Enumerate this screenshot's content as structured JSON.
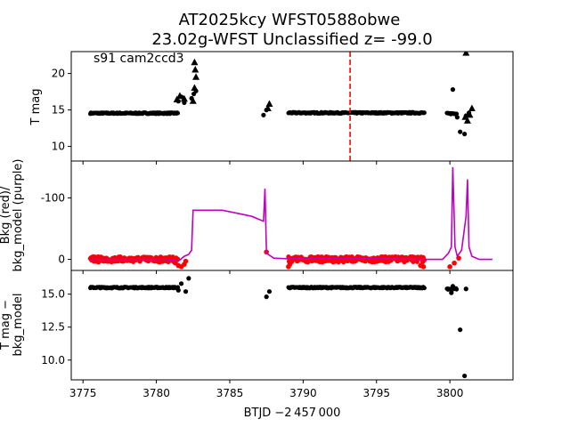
{
  "title_line1": "AT2025kcy  WFST0588obwe",
  "title_line2": "23.02g-WFST Unclassified z= -99.0",
  "annotation": "s91 cam2ccd3",
  "xlabel": "BTJD −2 457 000",
  "colors": {
    "data": "#000000",
    "bkg": "#ff0000",
    "model": "#c000c0",
    "marker": "#ff0000"
  },
  "chart_data": [
    {
      "type": "scatter",
      "panel": "top",
      "ylabel": "T mag",
      "ylim": [
        23.0,
        8.0
      ],
      "yticks": [
        10,
        15,
        20
      ],
      "xlim": [
        3774.2,
        3804.3
      ],
      "marker_x": 3793.2,
      "series": [
        {
          "kind": "band",
          "segments": [
            [
              3775.5,
              3781.5,
              14.55
            ],
            [
              3789.0,
              3798.3,
              14.6
            ],
            [
              3799.8,
              3800.5,
              14.5
            ]
          ]
        },
        {
          "kind": "points",
          "x": [
            3781.5,
            3781.7,
            3781.9,
            3782.4,
            3782.55,
            3782.7,
            3787.3,
            3787.5,
            3800.5,
            3800.7,
            3801.1,
            3801.3
          ],
          "y": [
            16.2,
            16.8,
            16.0,
            16.6,
            17.2,
            17.6,
            14.3,
            15.0,
            14.0,
            12.0,
            14.2,
            14.6
          ]
        },
        {
          "kind": "triangles",
          "x": [
            3781.4,
            3781.6,
            3781.9,
            3782.5,
            3782.6,
            3782.7,
            3782.65,
            3782.6,
            3787.6,
            3787.7,
            3801.05,
            3801.2,
            3801.35,
            3801.5,
            3801.1
          ],
          "y": [
            16.4,
            16.9,
            16.5,
            16.2,
            18.0,
            19.5,
            20.5,
            21.5,
            15.2,
            15.8,
            14.0,
            13.5,
            14.3,
            15.2,
            22.8
          ]
        },
        {
          "kind": "outliers",
          "x": [
            3801.0,
            3800.2
          ],
          "y": [
            11.7,
            17.8
          ]
        }
      ]
    },
    {
      "type": "line",
      "panel": "middle",
      "ylabel_line1": "Bkg (red)/",
      "ylabel_line2": "bkg_model (purple)",
      "ylim": [
        -160,
        18
      ],
      "yticks": [
        0,
        -100
      ],
      "bkg_segments": [
        [
          3775.5,
          3781.5,
          0
        ],
        [
          3789.0,
          3798.3,
          0
        ]
      ],
      "bkg_points": {
        "x": [
          3781.3,
          3781.5,
          3781.7,
          3781.9,
          3782.0,
          3787.5,
          3789.0,
          3789.1,
          3798.0,
          3798.2,
          3800.0,
          3800.3,
          3800.6
        ],
        "y": [
          6,
          10,
          12,
          8,
          3,
          -12,
          12,
          8,
          10,
          12,
          12,
          6,
          -2
        ]
      },
      "model": {
        "x": [
          3775.5,
          3780.5,
          3781.5,
          3781.9,
          3782.2,
          3782.4,
          3782.5,
          3783.5,
          3784.5,
          3785.5,
          3786.5,
          3787.3,
          3787.4,
          3787.5,
          3788.0,
          3789.0,
          3795.0,
          3798.0,
          3799.5,
          3799.9,
          3800.1,
          3800.2,
          3800.35,
          3800.5,
          3800.8,
          3801.1,
          3801.2,
          3801.3,
          3801.5,
          3802.0,
          3802.9
        ],
        "y": [
          0,
          0,
          3,
          -5,
          -8,
          -15,
          -80,
          -80,
          -80,
          -75,
          -70,
          -62,
          -115,
          -10,
          -2,
          -1,
          -1,
          0,
          0,
          -10,
          -20,
          -150,
          -20,
          -5,
          -15,
          -70,
          -130,
          -20,
          -5,
          0,
          0
        ]
      }
    },
    {
      "type": "scatter",
      "panel": "bottom",
      "ylabel_line1": "T mag −",
      "ylabel_line2": "bkg_model",
      "ylim": [
        16.8,
        8.5
      ],
      "yticks": [
        10.0,
        12.5,
        15.0
      ],
      "series": [
        {
          "kind": "band",
          "segments": [
            [
              3775.5,
              3781.5,
              15.5
            ],
            [
              3789.0,
              3798.3,
              15.5
            ],
            [
              3799.8,
              3800.5,
              15.4
            ]
          ]
        },
        {
          "kind": "points",
          "x": [
            3781.5,
            3781.7,
            3782.0,
            3782.2,
            3787.5,
            3787.7,
            3800.7,
            3801.0,
            3801.1,
            3800.1,
            3800.2
          ],
          "y": [
            15.3,
            15.8,
            15.2,
            16.2,
            14.8,
            15.2,
            12.3,
            8.8,
            15.4,
            15.1,
            15.6
          ]
        }
      ]
    }
  ],
  "xticks": [
    3775,
    3780,
    3785,
    3790,
    3795,
    3800
  ]
}
